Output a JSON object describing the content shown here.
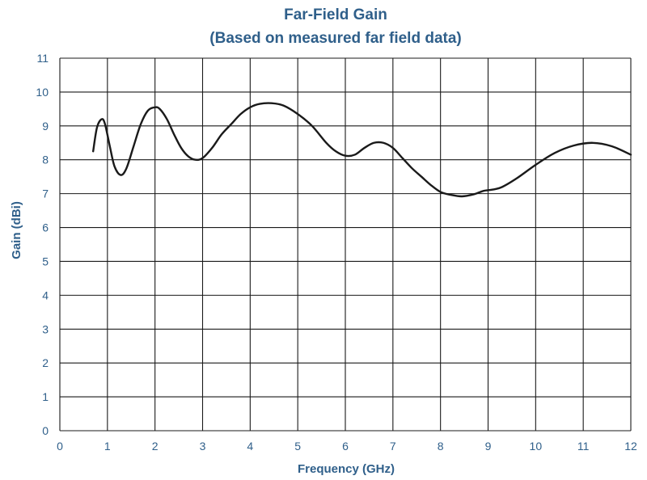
{
  "chart_data": {
    "type": "line",
    "title": "Far-Field Gain",
    "subtitle": "(Based on measured far field data)",
    "xlabel": "Frequency (GHz)",
    "ylabel": "Gain (dBi)",
    "xlim": [
      0,
      12
    ],
    "ylim": [
      0,
      11
    ],
    "x_ticks": [
      "0",
      "1",
      "2",
      "3",
      "4",
      "5",
      "6",
      "7",
      "8",
      "9",
      "10",
      "11",
      "12"
    ],
    "y_ticks": [
      "0",
      "1",
      "2",
      "3",
      "4",
      "5",
      "6",
      "7",
      "8",
      "9",
      "10",
      "11"
    ],
    "grid": true,
    "legend": "none",
    "colors": {
      "text": "#2f5f8a",
      "grid": "#1a1a1a",
      "line": "#1a1a1a"
    },
    "series": [
      {
        "x": [
          0.7,
          0.78,
          0.88,
          0.95,
          1.05,
          1.15,
          1.28,
          1.4,
          1.55,
          1.7,
          1.85,
          2.0,
          2.1,
          2.25,
          2.4,
          2.55,
          2.7,
          2.85,
          3.0,
          3.2,
          3.4,
          3.6,
          3.8,
          4.0,
          4.2,
          4.45,
          4.7,
          5.0,
          5.3,
          5.6,
          5.8,
          6.0,
          6.2,
          6.4,
          6.6,
          6.8,
          7.0,
          7.2,
          7.4,
          7.6,
          7.8,
          8.0,
          8.2,
          8.45,
          8.7,
          8.9,
          9.1,
          9.3,
          9.6,
          10.0,
          10.4,
          10.8,
          11.2,
          11.6,
          12.0
        ],
        "y": [
          8.25,
          8.95,
          9.2,
          9.05,
          8.4,
          7.8,
          7.55,
          7.75,
          8.4,
          9.05,
          9.45,
          9.55,
          9.5,
          9.2,
          8.75,
          8.35,
          8.1,
          8.0,
          8.05,
          8.35,
          8.75,
          9.05,
          9.35,
          9.55,
          9.65,
          9.67,
          9.6,
          9.35,
          9.0,
          8.5,
          8.25,
          8.12,
          8.15,
          8.35,
          8.5,
          8.5,
          8.35,
          8.05,
          7.75,
          7.5,
          7.25,
          7.05,
          6.97,
          6.92,
          6.98,
          7.08,
          7.12,
          7.2,
          7.45,
          7.85,
          8.2,
          8.42,
          8.5,
          8.4,
          8.15
        ]
      }
    ]
  }
}
